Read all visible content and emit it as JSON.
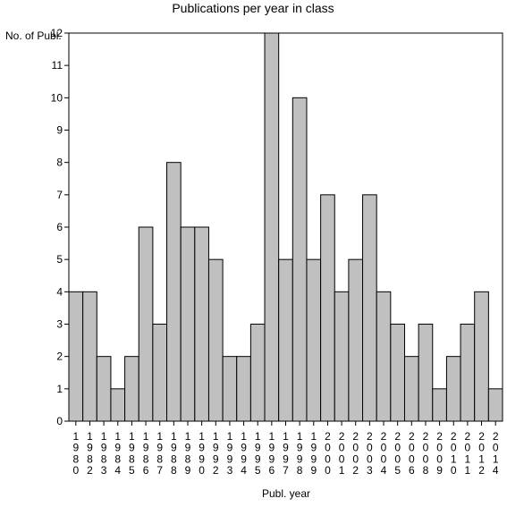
{
  "chart_data": {
    "type": "bar",
    "title": "Publications per year in class",
    "xlabel": "Publ. year",
    "ylabel": "No. of Publ.",
    "ylim": [
      0,
      12
    ],
    "yticks": [
      0,
      1,
      2,
      3,
      4,
      5,
      6,
      7,
      8,
      9,
      10,
      11,
      12
    ],
    "categories": [
      "1980",
      "1982",
      "1983",
      "1984",
      "1985",
      "1986",
      "1987",
      "1988",
      "1989",
      "1990",
      "1992",
      "1993",
      "1994",
      "1995",
      "1996",
      "1997",
      "1998",
      "1999",
      "2000",
      "2001",
      "2002",
      "2003",
      "2004",
      "2005",
      "2006",
      "2008",
      "2009",
      "2010",
      "2011",
      "2012",
      "2014"
    ],
    "values": [
      4,
      4,
      2,
      1,
      2,
      6,
      3,
      8,
      6,
      6,
      5,
      2,
      2,
      3,
      12,
      5,
      10,
      5,
      7,
      4,
      5,
      7,
      4,
      3,
      2,
      3,
      1,
      2,
      3,
      4,
      1
    ],
    "grid": false,
    "colors": {
      "bar_fill": "#c0c0c0",
      "bar_stroke": "#000000"
    }
  }
}
